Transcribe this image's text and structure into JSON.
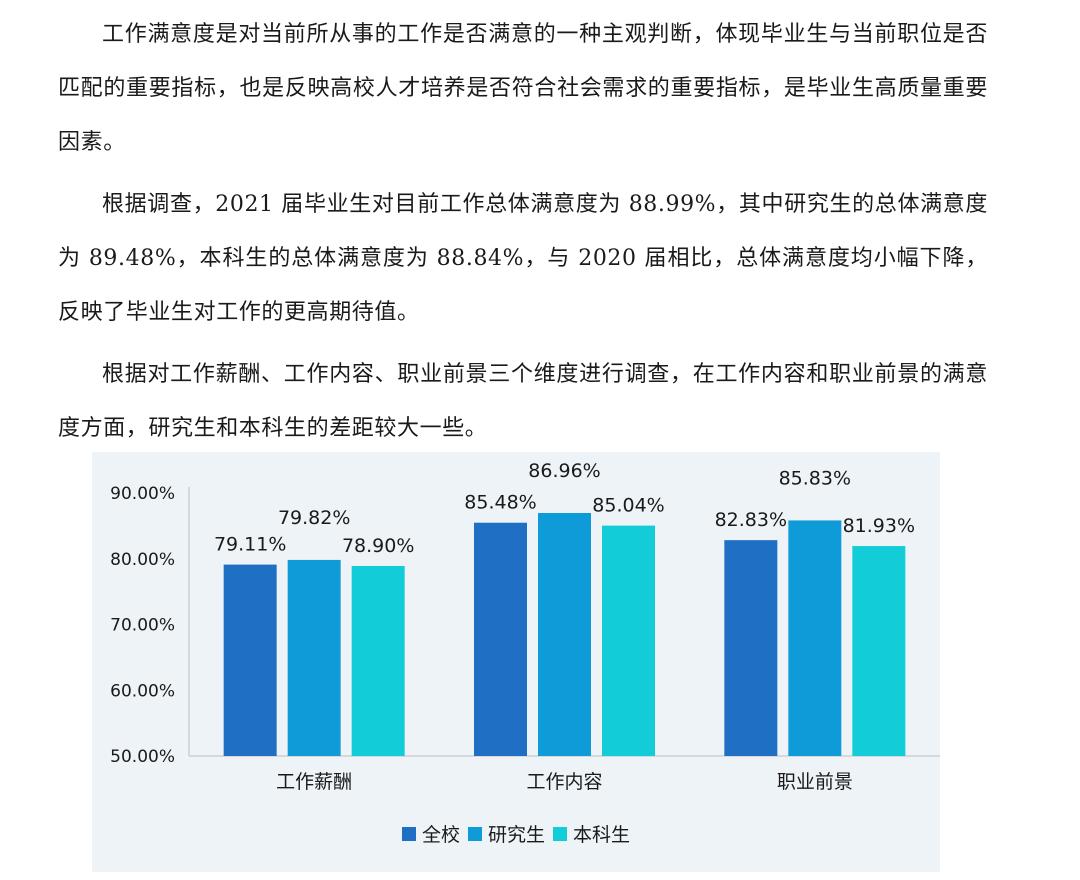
{
  "paragraphs": [
    "工作满意度是对当前所从事的工作是否满意的一种主观判断，体现毕业生与当前职位是否匹配的重要指标，也是反映高校人才培养是否符合社会需求的重要指标，是毕业生高质量重要因素。",
    "根据调查，2021 届毕业生对目前工作总体满意度为 88.99%，其中研究生的总体满意度为 89.48%，本科生的总体满意度为 88.84%，与 2020 届相比，总体满意度均小幅下降，反映了毕业生对工作的更高期待值。",
    "根据对工作薪酬、工作内容、职业前景三个维度进行调查，在工作内容和职业前景的满意度方面，研究生和本科生的差距较大一些。"
  ],
  "chart_data": {
    "type": "bar",
    "categories": [
      "工作薪酬",
      "工作内容",
      "职业前景"
    ],
    "series": [
      {
        "name": "全校",
        "values": [
          79.11,
          85.48,
          82.83
        ],
        "labels": [
          "79.11%",
          "85.48%",
          "82.83%"
        ],
        "color": "#1f6fc5"
      },
      {
        "name": "研究生",
        "values": [
          79.82,
          86.96,
          85.83
        ],
        "labels": [
          "79.82%",
          "86.96%",
          "85.83%"
        ],
        "color": "#0f9ad8"
      },
      {
        "name": "本科生",
        "values": [
          78.9,
          85.04,
          81.93
        ],
        "labels": [
          "78.90%",
          "85.04%",
          "81.93%"
        ],
        "color": "#12ccd8"
      }
    ],
    "ylim": [
      50,
      90
    ],
    "yticks": [
      50,
      60,
      70,
      80,
      90
    ],
    "ytick_labels": [
      "50.00%",
      "60.00%",
      "70.00%",
      "80.00%",
      "90.00%"
    ],
    "grid": false,
    "legend_position": "bottom",
    "title": "",
    "xlabel": "",
    "ylabel": ""
  }
}
